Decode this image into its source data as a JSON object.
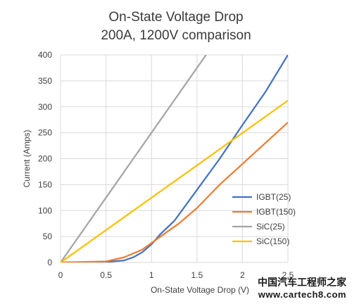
{
  "chart_data": {
    "type": "line",
    "title": "On-State Voltage Drop",
    "subtitle": "200A, 1200V comparison",
    "xlabel": "On-State Voltage Drop (V)",
    "ylabel": "Current (Amps)",
    "xlim": [
      0,
      2.5
    ],
    "ylim": [
      0,
      400
    ],
    "x_ticks": [
      0,
      0.5,
      1,
      1.5,
      2,
      2.5
    ],
    "y_ticks": [
      0,
      50,
      100,
      150,
      200,
      250,
      300,
      350,
      400
    ],
    "grid": true,
    "legend_position": "right",
    "series": [
      {
        "name": "IGBT(25)",
        "color": "#4472C4",
        "x": [
          0,
          0.5,
          0.7,
          0.8,
          0.9,
          1.0,
          1.1,
          1.25,
          1.5,
          1.75,
          2.0,
          2.25,
          2.5
        ],
        "y": [
          0,
          1,
          4,
          10,
          20,
          35,
          55,
          80,
          140,
          200,
          265,
          328,
          400
        ]
      },
      {
        "name": "IGBT(150)",
        "color": "#ED7D31",
        "x": [
          0,
          0.5,
          0.7,
          0.9,
          1.1,
          1.3,
          1.5,
          1.75,
          2.0,
          2.25,
          2.5
        ],
        "y": [
          0,
          2,
          10,
          25,
          50,
          75,
          105,
          150,
          190,
          230,
          270
        ]
      },
      {
        "name": "SiC(25)",
        "color": "#A5A5A5",
        "x": [
          0,
          1.6
        ],
        "y": [
          0,
          400
        ]
      },
      {
        "name": "SiC(150)",
        "color": "#FFC000",
        "x": [
          0,
          2.5
        ],
        "y": [
          0,
          312
        ]
      }
    ]
  },
  "watermark": {
    "text_cn": "中国汽车工程师之家",
    "url": "www.cartech8.com"
  }
}
